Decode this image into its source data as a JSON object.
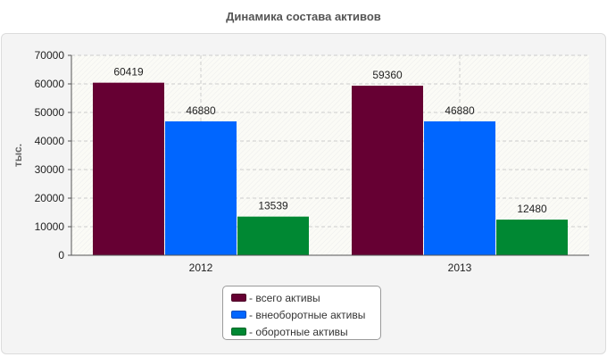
{
  "chart_data": {
    "type": "bar",
    "title": "Динамика состава активов",
    "ylabel": "тыс.",
    "xlabel": "",
    "categories": [
      "2012",
      "2013"
    ],
    "ylim": [
      0,
      70000
    ],
    "yticks": [
      "0",
      "10000",
      "20000",
      "30000",
      "40000",
      "50000",
      "60000",
      "70000"
    ],
    "grid": true,
    "legend_position": "bottom-center",
    "series": [
      {
        "name": "- всего активы",
        "values": [
          60419,
          59360
        ],
        "labels": [
          "60419",
          "59360"
        ],
        "color": "#660033"
      },
      {
        "name": "- внеоборотные активы",
        "values": [
          46880,
          46880
        ],
        "labels": [
          "46880",
          "46880"
        ],
        "color": "#0066ff"
      },
      {
        "name": "- оборотные активы",
        "values": [
          13539,
          12480
        ],
        "labels": [
          "13539",
          "12480"
        ],
        "color": "#008833"
      }
    ]
  }
}
